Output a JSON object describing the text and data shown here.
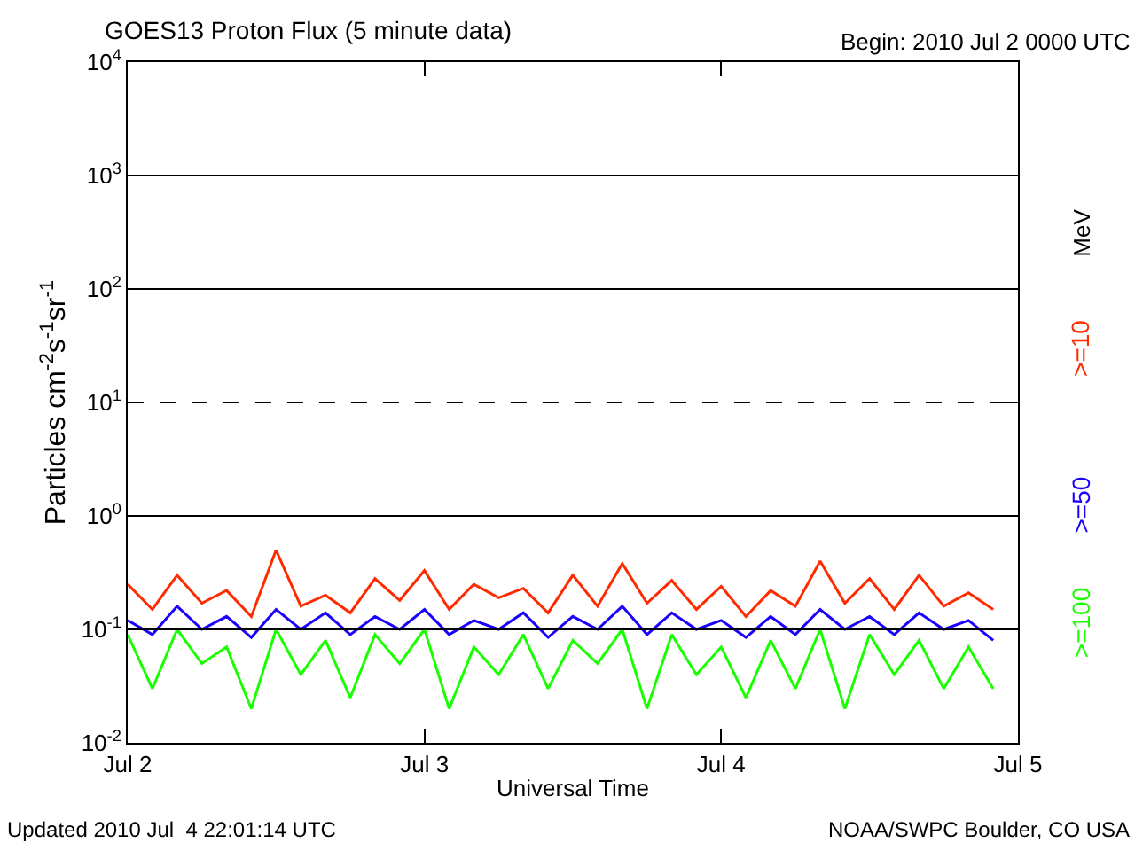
{
  "chart_data": {
    "type": "line",
    "title": "GOES13 Proton Flux (5 minute data)",
    "subtitle": "Begin: 2010 Jul 2 0000 UTC",
    "xlabel": "Universal Time",
    "ylabel": "Particles cm$^{-2}$s$^{-1}$sr$^{-1}$",
    "legend_title": "MeV",
    "legend": "right",
    "log": "y",
    "grid": false,
    "x": [
      "2010-07-02T00:00",
      "2010-07-02T02:00",
      "2010-07-02T04:00",
      "2010-07-02T06:00",
      "2010-07-02T08:00",
      "2010-07-02T10:00",
      "2010-07-02T12:00",
      "2010-07-02T14:00",
      "2010-07-02T16:00",
      "2010-07-02T18:00",
      "2010-07-02T20:00",
      "2010-07-02T22:00",
      "2010-07-03T00:00",
      "2010-07-03T02:00",
      "2010-07-03T04:00",
      "2010-07-03T06:00",
      "2010-07-03T08:00",
      "2010-07-03T10:00",
      "2010-07-03T12:00",
      "2010-07-03T14:00",
      "2010-07-03T16:00",
      "2010-07-03T18:00",
      "2010-07-03T20:00",
      "2010-07-03T22:00",
      "2010-07-04T00:00",
      "2010-07-04T02:00",
      "2010-07-04T04:00",
      "2010-07-04T06:00",
      "2010-07-04T08:00",
      "2010-07-04T10:00",
      "2010-07-04T12:00",
      "2010-07-04T14:00",
      "2010-07-04T16:00",
      "2010-07-04T18:00",
      "2010-07-04T20:00",
      "2010-07-04T22:00"
    ],
    "series": [
      {
        "name": ">=10",
        "color": "#ff2a00",
        "values": [
          0.25,
          0.15,
          0.3,
          0.17,
          0.22,
          0.13,
          0.5,
          0.16,
          0.2,
          0.14,
          0.28,
          0.18,
          0.33,
          0.15,
          0.25,
          0.19,
          0.23,
          0.14,
          0.3,
          0.16,
          0.38,
          0.17,
          0.27,
          0.15,
          0.24,
          0.13,
          0.22,
          0.16,
          0.4,
          0.17,
          0.28,
          0.15,
          0.3,
          0.16,
          0.21,
          0.15
        ]
      },
      {
        "name": ">=50",
        "color": "#1a00ff",
        "values": [
          0.12,
          0.09,
          0.16,
          0.1,
          0.13,
          0.085,
          0.15,
          0.1,
          0.14,
          0.09,
          0.13,
          0.1,
          0.15,
          0.09,
          0.12,
          0.1,
          0.14,
          0.085,
          0.13,
          0.1,
          0.16,
          0.09,
          0.14,
          0.1,
          0.12,
          0.085,
          0.13,
          0.09,
          0.15,
          0.1,
          0.13,
          0.09,
          0.14,
          0.1,
          0.12,
          0.08
        ]
      },
      {
        "name": ">=100",
        "color": "#1aff00",
        "values": [
          0.09,
          0.03,
          0.1,
          0.05,
          0.07,
          0.02,
          0.1,
          0.04,
          0.08,
          0.025,
          0.09,
          0.05,
          0.1,
          0.02,
          0.07,
          0.04,
          0.09,
          0.03,
          0.08,
          0.05,
          0.1,
          0.02,
          0.09,
          0.04,
          0.07,
          0.025,
          0.08,
          0.03,
          0.1,
          0.02,
          0.09,
          0.04,
          0.08,
          0.03,
          0.07,
          0.03
        ]
      }
    ],
    "xlim": [
      "2010-07-02T00:00",
      "2010-07-05T00:00"
    ],
    "xticks": [
      {
        "value": "2010-07-02T00:00",
        "label": "Jul 2"
      },
      {
        "value": "2010-07-03T00:00",
        "label": "Jul 3"
      },
      {
        "value": "2010-07-04T00:00",
        "label": "Jul 4"
      },
      {
        "value": "2010-07-05T00:00",
        "label": "Jul 5"
      }
    ],
    "ylim": [
      0.01,
      10000
    ],
    "yticks": [
      {
        "value": 0.01,
        "label": "10$^{-2}$"
      },
      {
        "value": 0.1,
        "label": "10$^{-1}$"
      },
      {
        "value": 1,
        "label": "10$^{0}$"
      },
      {
        "value": 10,
        "label": "10$^{1}$"
      },
      {
        "value": 100,
        "label": "10$^{2}$"
      },
      {
        "value": 1000,
        "label": "10$^{3}$"
      },
      {
        "value": 10000,
        "label": "10$^{4}$"
      }
    ],
    "ref_lines": [
      {
        "axis": "y",
        "value": 0.1,
        "color": "#000000",
        "line_style": "solid"
      },
      {
        "axis": "y",
        "value": 1,
        "color": "#000000",
        "line_style": "solid"
      },
      {
        "axis": "y",
        "value": 10,
        "color": "#000000",
        "line_style": "dashed"
      },
      {
        "axis": "y",
        "value": 100,
        "color": "#000000",
        "line_style": "solid"
      },
      {
        "axis": "y",
        "value": 1000,
        "color": "#000000",
        "line_style": "solid"
      }
    ],
    "annotations": [
      "Updated 2010 Jul  4 22:01:14 UTC",
      "NOAA/SWPC Boulder, CO USA"
    ]
  }
}
